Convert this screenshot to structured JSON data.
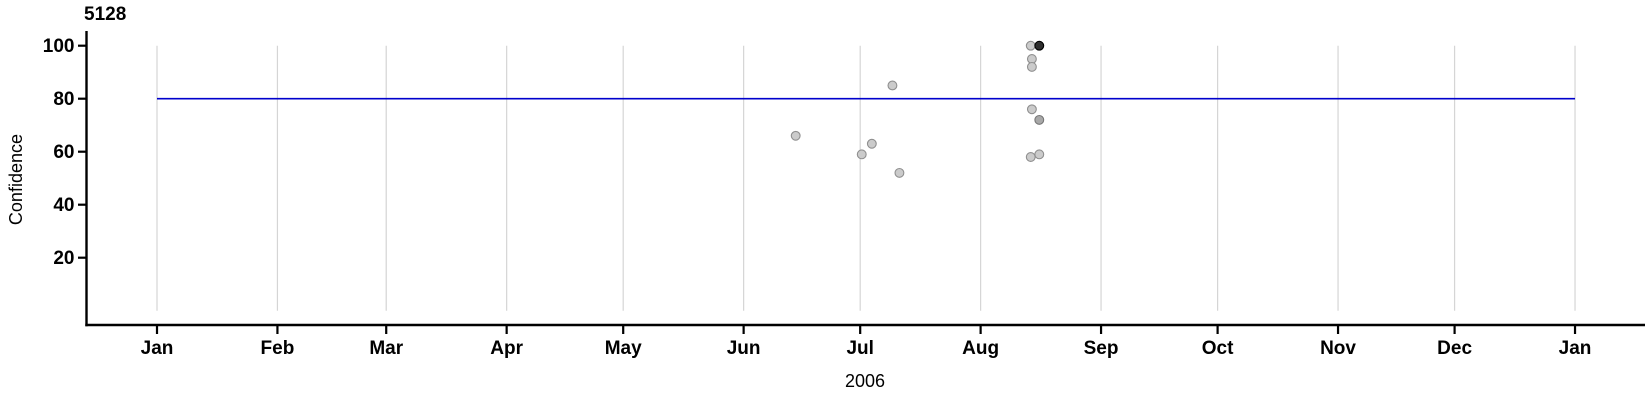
{
  "chart_data": {
    "type": "scatter",
    "title": "5128",
    "xlabel": "2006",
    "ylabel": "Confidence",
    "x_axis": {
      "unit": "days since Jan 1, 2006",
      "tick_labels": [
        "Jan",
        "Feb",
        "Mar",
        "Apr",
        "May",
        "Jun",
        "Jul",
        "Aug",
        "Sep",
        "Oct",
        "Nov",
        "Dec",
        "Jan"
      ],
      "tick_day_offsets": [
        0,
        31,
        59,
        90,
        120,
        151,
        181,
        212,
        243,
        273,
        304,
        334,
        365
      ],
      "range_days": [
        0,
        365
      ],
      "grid": true
    },
    "y_axis": {
      "tick_values": [
        20,
        40,
        60,
        80,
        100
      ],
      "ylim": [
        0,
        105
      ],
      "grid": false
    },
    "threshold_line": {
      "value": 80,
      "start_day": 0,
      "end_day": 365,
      "color": "#0000cc"
    },
    "points": [
      {
        "date": "2006-06-13",
        "day": 164.4,
        "confidence": 66,
        "style": "gray"
      },
      {
        "date": "2006-07-01",
        "day": 181.4,
        "confidence": 59,
        "style": "gray"
      },
      {
        "date": "2006-07-03",
        "day": 184.0,
        "confidence": 63,
        "style": "gray"
      },
      {
        "date": "2006-07-08",
        "day": 189.3,
        "confidence": 85,
        "style": "gray"
      },
      {
        "date": "2006-07-10",
        "day": 191.1,
        "confidence": 52,
        "style": "gray"
      },
      {
        "date": "2006-08-13",
        "day": 224.9,
        "confidence": 100,
        "style": "gray"
      },
      {
        "date": "2006-08-13",
        "day": 225.2,
        "confidence": 95,
        "style": "gray"
      },
      {
        "date": "2006-08-13",
        "day": 225.2,
        "confidence": 92,
        "style": "gray"
      },
      {
        "date": "2006-08-13",
        "day": 225.2,
        "confidence": 76,
        "style": "gray"
      },
      {
        "date": "2006-08-15",
        "day": 227.1,
        "confidence": 72,
        "style": "dark_gray"
      },
      {
        "date": "2006-08-13",
        "day": 224.9,
        "confidence": 58,
        "style": "gray"
      },
      {
        "date": "2006-08-15",
        "day": 227.1,
        "confidence": 59,
        "style": "gray"
      },
      {
        "date": "2006-08-15",
        "day": 227.1,
        "confidence": 100,
        "style": "black"
      }
    ],
    "point_styles": {
      "gray": {
        "fill": "#cbcbcb",
        "stroke": "#8f8f8f"
      },
      "dark_gray": {
        "fill": "#a8a8a8",
        "stroke": "#757575"
      },
      "black": {
        "fill": "#2e2e2e",
        "stroke": "#000000"
      }
    },
    "colors": {
      "axis": "#000000",
      "gridline": "#d5d5d5",
      "threshold": "#0000cc",
      "text": "#000000"
    }
  }
}
